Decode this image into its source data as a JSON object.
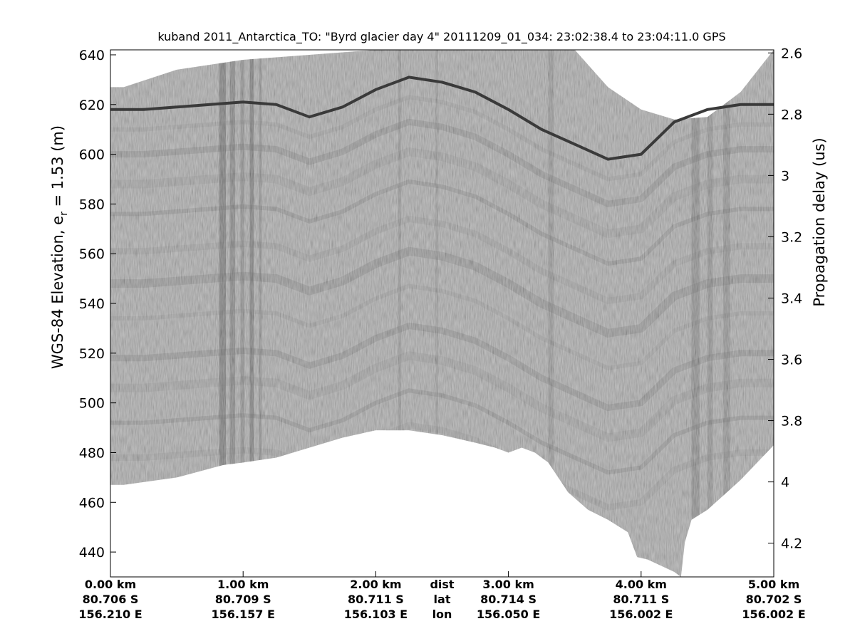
{
  "chart_data": {
    "type": "radargram",
    "title": "kuband 2011_Antarctica_TO: \"Byrd glacier day 4\"  20111209_01_034: 23:02:38.4 to 23:04:11.0 GPS",
    "ylabel": "WGS-84 Elevation, e",
    "ylabel_sub": "r",
    "ylabel_suffix": " = 1.53 (m)",
    "ylabel_right": "Propagation delay (us)",
    "ylim": [
      430,
      642
    ],
    "yticks": [
      440,
      460,
      480,
      500,
      520,
      540,
      560,
      580,
      600,
      620,
      640
    ],
    "ylim_right": [
      4.31,
      2.59
    ],
    "yticks_right": [
      2.6,
      2.8,
      3,
      3.2,
      3.4,
      3.6,
      3.8,
      4,
      4.2
    ],
    "xlim_km": [
      0,
      5
    ],
    "xticks": [
      {
        "km": 0,
        "dist": "0.00 km",
        "lat": "80.706 S",
        "lon": "156.210 E"
      },
      {
        "km": 1,
        "dist": "1.00 km",
        "lat": "80.709 S",
        "lon": "156.157 E"
      },
      {
        "km": 2,
        "dist": "2.00 km",
        "lat": "80.711 S",
        "lon": "156.103 E"
      },
      {
        "km": 3,
        "dist": "3.00 km",
        "lat": "80.714 S",
        "lon": "156.050 E"
      },
      {
        "km": 4,
        "dist": "4.00 km",
        "lat": "80.711 S",
        "lon": "156.002 E"
      },
      {
        "km": 5,
        "dist": "5.00 km",
        "lat": "80.702 S",
        "lon": "156.002 E"
      }
    ],
    "row_labels": {
      "km": 2.5,
      "dist": "dist",
      "lat": "lat",
      "lon": "lon"
    },
    "surface_elevation_m": {
      "x_km": [
        0,
        0.25,
        0.5,
        0.75,
        1.0,
        1.25,
        1.5,
        1.75,
        2.0,
        2.25,
        2.5,
        2.75,
        3.0,
        3.25,
        3.5,
        3.75,
        4.0,
        4.25,
        4.5,
        4.75,
        5.0
      ],
      "y": [
        618,
        618,
        619,
        620,
        621,
        620,
        615,
        619,
        626,
        631,
        629,
        625,
        618,
        610,
        604,
        598,
        600,
        613,
        618,
        620,
        620
      ]
    },
    "data_top_elevation_m": {
      "x_km": [
        0,
        0.1,
        0.5,
        1.0,
        1.5,
        2.0,
        2.25,
        2.5,
        2.75,
        3.0,
        3.25,
        3.5,
        3.75,
        4.0,
        4.25,
        4.5,
        4.75,
        5.0
      ],
      "y": [
        627,
        627,
        634,
        638,
        640,
        642,
        642,
        642,
        642,
        642,
        642,
        642,
        627,
        618,
        614,
        615,
        625,
        642
      ]
    },
    "data_bottom_elevation_m": {
      "x_km": [
        0,
        0.1,
        0.5,
        0.85,
        1.0,
        1.25,
        1.5,
        1.75,
        2.0,
        2.25,
        2.5,
        2.75,
        2.9,
        3.0,
        3.1,
        3.2,
        3.3,
        3.45,
        3.6,
        3.75,
        3.9,
        3.97,
        4.05,
        4.25,
        4.3,
        4.33,
        4.38,
        4.5,
        4.75,
        5.0
      ],
      "y": [
        467,
        467,
        470,
        475,
        476,
        478,
        482,
        486,
        489,
        489,
        487,
        484,
        482,
        480,
        482,
        480,
        476,
        464,
        457,
        453,
        448,
        438,
        437,
        432,
        430,
        444,
        453,
        457,
        469,
        483
      ]
    },
    "grayscale": "radar echogram, light gray background with dark banded internal layers"
  }
}
